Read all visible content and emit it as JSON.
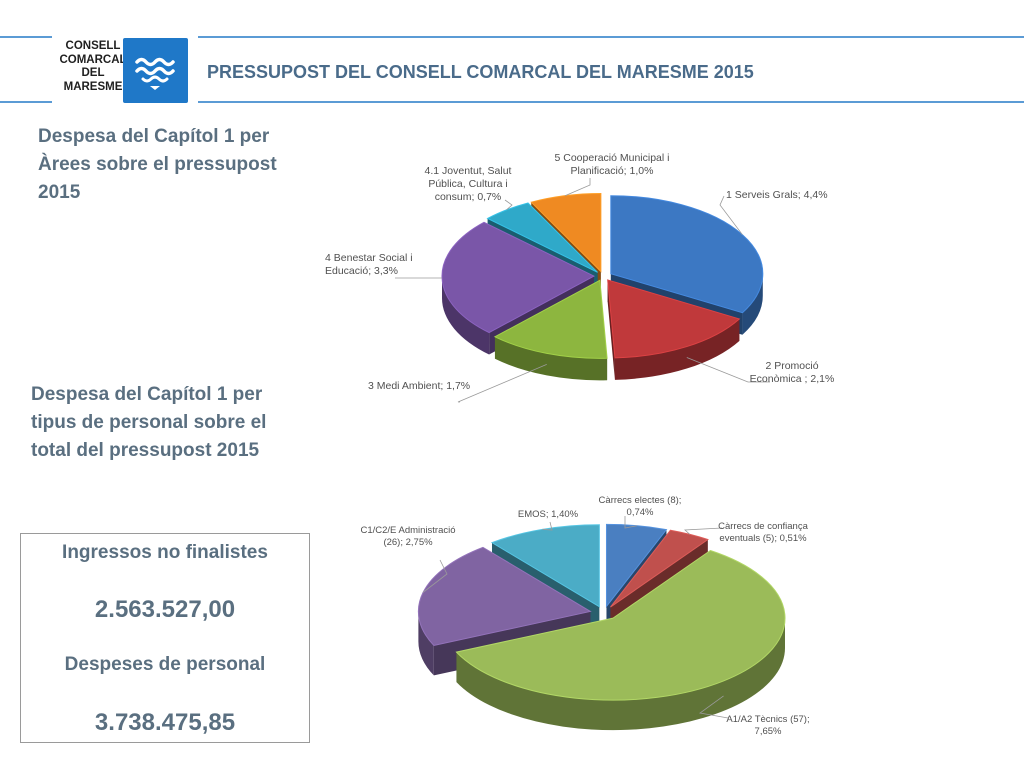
{
  "header": {
    "logo_lines": [
      "CONSELL",
      "COMARCAL",
      "DEL",
      "MARESME"
    ],
    "title": "PRESSUPOST DEL CONSELL COMARCAL DEL MARESME 2015"
  },
  "headings": {
    "areas": "Despesa del Capítol 1 per Àrees sobre el pressupost 2015",
    "personal": "Despesa del Capítol 1 per tipus de personal sobre el total del pressupost 2015"
  },
  "summary": {
    "income_label": "Ingressos no finalistes",
    "income_value": "2.563.527,00",
    "expense_label": "Despeses de personal",
    "expense_value": "3.738.475,85"
  },
  "colors": {
    "rule": "#5b9bd5",
    "logo_blue": "#1f78c8",
    "heading": "#5a6f80",
    "title": "#4a6b8a"
  },
  "chart_data": [
    {
      "type": "pie",
      "style": "3d-exploded",
      "unit": "%",
      "series": [
        {
          "label": "1 Serveis Grals; 4,4%",
          "value": 4.4,
          "color": "#3c78c3"
        },
        {
          "label": "2 Promoció Econòmica ; 2,1%",
          "value": 2.1,
          "color": "#c0393b"
        },
        {
          "label": "3 Medi Ambient; 1,7%",
          "value": 1.7,
          "color": "#8db63f"
        },
        {
          "label": "4 Benestar Social i Educació; 3,3%",
          "value": 3.3,
          "color": "#7a56a8"
        },
        {
          "label": "4.1 Joventut, Salut Pública, Cultura i consum; 0,7%",
          "value": 0.7,
          "color": "#2fa9c9"
        },
        {
          "label": "5 Cooperació Municipal i Planificació; 1,0%",
          "value": 1.0,
          "color": "#ef8a22"
        }
      ]
    },
    {
      "type": "pie",
      "style": "3d-exploded",
      "unit": "%",
      "series": [
        {
          "label": "Càrrecs electes (8); 0,74%",
          "value": 0.74,
          "color": "#4a7fc1"
        },
        {
          "label": "Càrrecs de confiança eventuals (5); 0,51%",
          "value": 0.51,
          "color": "#c0504d"
        },
        {
          "label": "A1/A2 Tècnics (57); 7,65%",
          "value": 7.65,
          "color": "#9bbb59"
        },
        {
          "label": "C1/C2/E Administració (26); 2,75%",
          "value": 2.75,
          "color": "#8064a2"
        },
        {
          "label": "EMOS; 1,40%",
          "value": 1.4,
          "color": "#4bacc6"
        }
      ]
    }
  ]
}
